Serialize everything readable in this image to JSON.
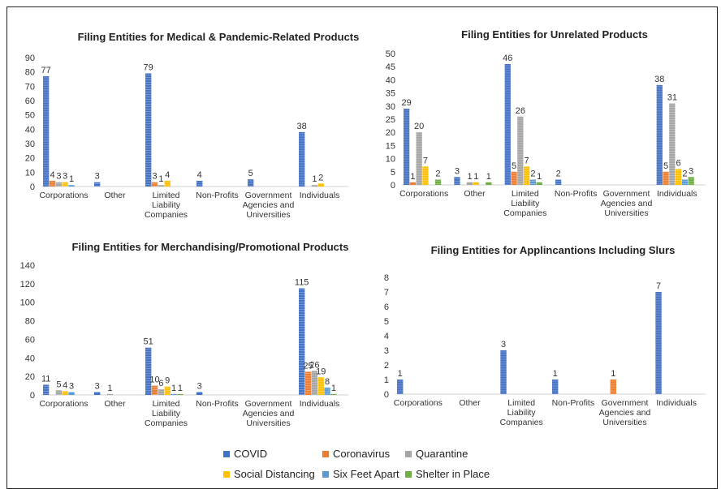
{
  "colors": {
    "COVID": "#4472c4",
    "Coronavirus": "#ed7d31",
    "Quarantine": "#a5a5a5",
    "Social Distancing": "#ffc000",
    "Six Feet Apart": "#5b9bd5",
    "Shelter in Place": "#70ad47"
  },
  "legend": [
    "COVID",
    "Coronavirus",
    "Quarantine",
    "Social Distancing",
    "Six Feet Apart",
    "Shelter in Place"
  ],
  "chart_data": [
    {
      "type": "bar",
      "title": "Filing Entities for Medical & Pandemic-Related Products",
      "categories": [
        [
          "Corporations"
        ],
        [
          "Other"
        ],
        [
          "Limited",
          "Liability",
          "Companies"
        ],
        [
          "Non-Profits"
        ],
        [
          "Government",
          "Agencies and",
          "Universities"
        ],
        [
          "Individuals"
        ]
      ],
      "ylim": [
        0,
        90
      ],
      "ystep": 10,
      "series": [
        {
          "name": "COVID",
          "values": [
            77,
            3,
            79,
            4,
            5,
            38
          ]
        },
        {
          "name": "Coronavirus",
          "values": [
            4,
            0,
            3,
            0,
            0,
            0
          ]
        },
        {
          "name": "Quarantine",
          "values": [
            3,
            0,
            1,
            0,
            0,
            1
          ]
        },
        {
          "name": "Social Distancing",
          "values": [
            3,
            0,
            4,
            0,
            0,
            2
          ]
        },
        {
          "name": "Six Feet Apart",
          "values": [
            1,
            0,
            0,
            0,
            0,
            0
          ]
        },
        {
          "name": "Shelter in Place",
          "values": [
            0,
            0,
            0,
            0,
            0,
            0
          ]
        }
      ]
    },
    {
      "type": "bar",
      "title": "Filing Entities for Unrelated Products",
      "categories": [
        [
          "Corporations"
        ],
        [
          "Other"
        ],
        [
          "Limited",
          "Liability",
          "Companies"
        ],
        [
          "Non-Profits"
        ],
        [
          "Government",
          "Agencies and",
          "Universities"
        ],
        [
          "Individuals"
        ]
      ],
      "ylim": [
        0,
        50
      ],
      "ystep": 5,
      "series": [
        {
          "name": "COVID",
          "values": [
            29,
            3,
            46,
            2,
            0,
            38
          ]
        },
        {
          "name": "Coronavirus",
          "values": [
            1,
            0,
            5,
            0,
            0,
            5
          ]
        },
        {
          "name": "Quarantine",
          "values": [
            20,
            1,
            26,
            0,
            0,
            31
          ]
        },
        {
          "name": "Social Distancing",
          "values": [
            7,
            1,
            7,
            0,
            0,
            6
          ]
        },
        {
          "name": "Six Feet Apart",
          "values": [
            0,
            0,
            2,
            0,
            0,
            2
          ]
        },
        {
          "name": "Shelter in Place",
          "values": [
            2,
            1,
            1,
            0,
            0,
            3
          ]
        }
      ]
    },
    {
      "type": "bar",
      "title": "Filing Entities for Merchandising/Promotional Products",
      "categories": [
        [
          "Corporations"
        ],
        [
          "Other"
        ],
        [
          "Limited",
          "Liability",
          "Companies"
        ],
        [
          "Non-Profits"
        ],
        [
          "Government",
          "Agencies and",
          "Universities"
        ],
        [
          "Individuals"
        ]
      ],
      "ylim": [
        0,
        140
      ],
      "ystep": 20,
      "series": [
        {
          "name": "COVID",
          "values": [
            11,
            3,
            51,
            3,
            0,
            115
          ]
        },
        {
          "name": "Coronavirus",
          "values": [
            0,
            0,
            10,
            0,
            0,
            25
          ]
        },
        {
          "name": "Quarantine",
          "values": [
            5,
            1,
            6,
            0,
            0,
            26
          ]
        },
        {
          "name": "Social Distancing",
          "values": [
            4,
            0,
            9,
            0,
            0,
            19
          ]
        },
        {
          "name": "Six Feet Apart",
          "values": [
            3,
            0,
            1,
            0,
            0,
            8
          ]
        },
        {
          "name": "Shelter in Place",
          "values": [
            0,
            0,
            1,
            0,
            0,
            1
          ]
        }
      ]
    },
    {
      "type": "bar",
      "title": "Filing Entities for Applincantions Including Slurs",
      "categories": [
        [
          "Corporations"
        ],
        [
          "Other"
        ],
        [
          "Limited",
          "Liability",
          "Companies"
        ],
        [
          "Non-Profits"
        ],
        [
          "Government",
          "Agencies and",
          "Universities"
        ],
        [
          "Individuals"
        ]
      ],
      "ylim": [
        0,
        8
      ],
      "ystep": 1,
      "series": [
        {
          "name": "COVID",
          "values": [
            1,
            0,
            3,
            1,
            0,
            7
          ]
        },
        {
          "name": "Coronavirus",
          "values": [
            0,
            0,
            0,
            0,
            1,
            0
          ]
        },
        {
          "name": "Quarantine",
          "values": [
            0,
            0,
            0,
            0,
            0,
            0
          ]
        },
        {
          "name": "Social Distancing",
          "values": [
            0,
            0,
            0,
            0,
            0,
            0
          ]
        },
        {
          "name": "Six Feet Apart",
          "values": [
            0,
            0,
            0,
            0,
            0,
            0
          ]
        },
        {
          "name": "Shelter in Place",
          "values": [
            0,
            0,
            0,
            0,
            0,
            0
          ]
        }
      ]
    }
  ]
}
